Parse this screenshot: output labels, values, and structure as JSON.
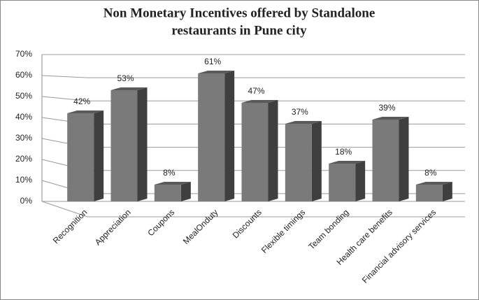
{
  "chart_data": {
    "type": "bar3d",
    "title": [
      "Non Monetary Incentives offered by Standalone",
      "restaurants in Pune city"
    ],
    "categories": [
      "Recognition",
      "Appreciation",
      "Coupons",
      "MealOnduty",
      "Discounts",
      "Flexible timings",
      "Team bonding",
      "Health care benefits",
      "Financial advisory services"
    ],
    "values": [
      42,
      53,
      8,
      61,
      47,
      37,
      18,
      39,
      8
    ],
    "value_labels": [
      "42%",
      "53%",
      "8%",
      "61%",
      "47%",
      "37%",
      "18%",
      "39%",
      "8%"
    ],
    "color": "#7a7a7a",
    "ylim": [
      0,
      70
    ],
    "yticks": [
      {
        "value": 0,
        "label": "0%"
      },
      {
        "value": 10,
        "label": "10%"
      },
      {
        "value": 20,
        "label": "20%"
      },
      {
        "value": 30,
        "label": "30%"
      },
      {
        "value": 40,
        "label": "40%"
      },
      {
        "value": 50,
        "label": "50%"
      },
      {
        "value": 60,
        "label": "60%"
      },
      {
        "value": 70,
        "label": "70%"
      }
    ],
    "grid": true
  }
}
